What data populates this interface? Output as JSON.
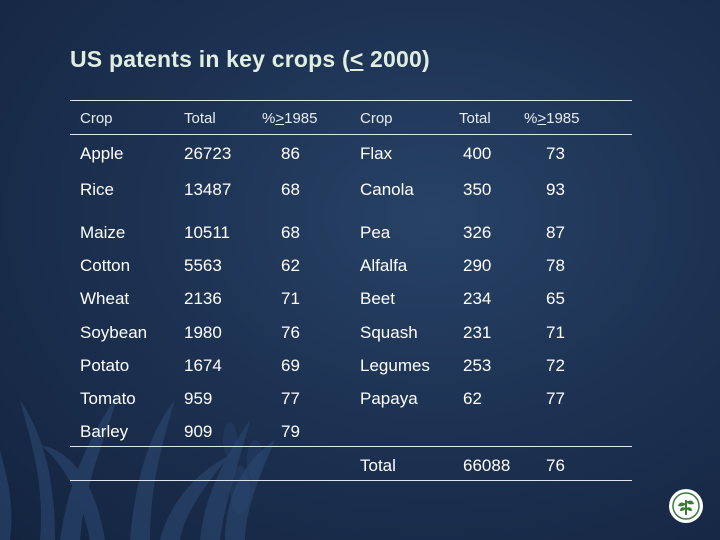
{
  "slide": {
    "title_prefix": "US patents in key crops (",
    "title_le": "<",
    "title_suffix": " 2000)"
  },
  "table": {
    "headers": {
      "crop": "Crop",
      "total": "Total",
      "pct_prefix": "%",
      "pct_ge": ">",
      "pct_year": "1985"
    },
    "rows": [
      {
        "crop1": "Apple",
        "total1": "26723",
        "pct1": "86",
        "crop2": "Flax",
        "total2": "400",
        "pct2": "73"
      },
      {
        "crop1": "Rice",
        "total1": "13487",
        "pct1": "68",
        "crop2": "Canola",
        "total2": "350",
        "pct2": "93"
      },
      {
        "crop1": "Maize",
        "total1": "10511",
        "pct1": "68",
        "crop2": "Pea",
        "total2": "326",
        "pct2": "87"
      },
      {
        "crop1": "Cotton",
        "total1": "5563",
        "pct1": "62",
        "crop2": "Alfalfa",
        "total2": "290",
        "pct2": "78"
      },
      {
        "crop1": "Wheat",
        "total1": "2136",
        "pct1": "71",
        "crop2": "Beet",
        "total2": "234",
        "pct2": "65"
      },
      {
        "crop1": "Soybean",
        "total1": "1980",
        "pct1": "76",
        "crop2": "Squash",
        "total2": "231",
        "pct2": "71"
      },
      {
        "crop1": "Potato",
        "total1": "1674",
        "pct1": "69",
        "crop2": "Legumes",
        "total2": "253",
        "pct2": "72"
      },
      {
        "crop1": "Tomato",
        "total1": "959",
        "pct1": "77",
        "crop2": "Papaya",
        "total2": "62",
        "pct2": "77"
      },
      {
        "crop1": "Barley",
        "total1": "909",
        "pct1": "79",
        "crop2": "",
        "total2": "",
        "pct2": ""
      }
    ],
    "summary": {
      "label": "Total",
      "total": "66088",
      "pct": "76"
    }
  },
  "colors": {
    "background": "#1b2f4f",
    "title": "#dfeee0",
    "rule": "#dfe6ef"
  },
  "icons": [
    "plant-silhouette-graphic",
    "organization-logo-icon"
  ]
}
